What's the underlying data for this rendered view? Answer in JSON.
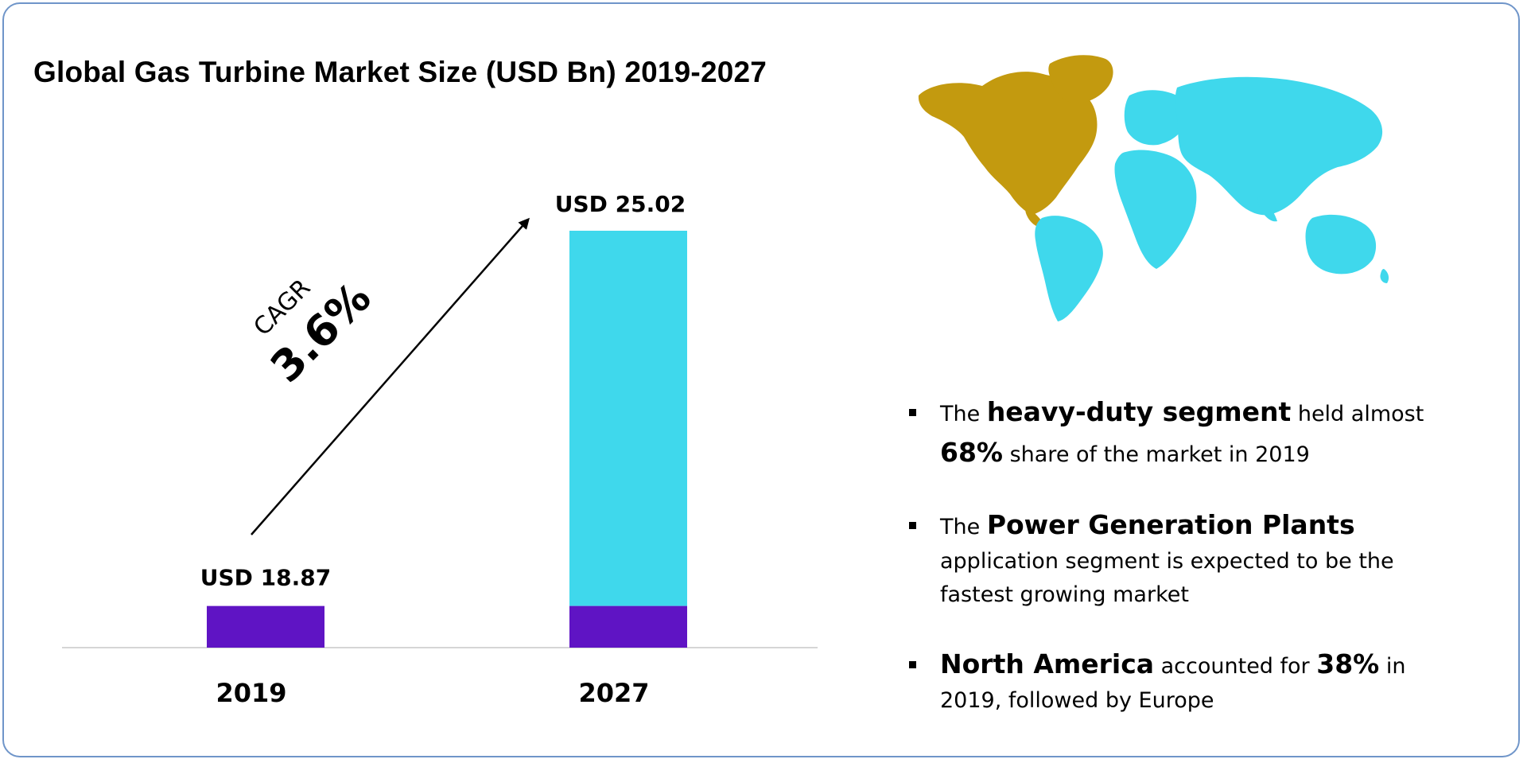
{
  "title": "Global Gas Turbine Market Size (USD Bn) 2019-2027",
  "cagr": {
    "label": "CAGR",
    "value": "3.6%"
  },
  "chart_data": {
    "type": "bar",
    "title": "Global Gas Turbine Market Size (USD Bn) 2019-2027",
    "categories": [
      "2019",
      "2027"
    ],
    "values": [
      18.87,
      25.02
    ],
    "data_labels": [
      "USD 18.87",
      "USD 25.02"
    ],
    "xlabel": "",
    "ylabel": "",
    "ylim": [
      0,
      25.02
    ],
    "base_value_shown": 2.5,
    "grid": false,
    "colors": {
      "base": "#5f14c4",
      "growth": "#3fd8ec"
    }
  },
  "map": {
    "highlight_color": "#c39a0f",
    "other_color": "#3fd8ec"
  },
  "bullets": [
    {
      "parts": [
        {
          "text": "The ",
          "bold": false
        },
        {
          "text": "heavy-duty segment",
          "bold": true
        },
        {
          "text": " held almost ",
          "bold": false
        },
        {
          "text": "68%",
          "bold": true
        },
        {
          "text": " share of the market in 2019",
          "bold": false
        }
      ]
    },
    {
      "parts": [
        {
          "text": "The ",
          "bold": false
        },
        {
          "text": "Power Generation Plants",
          "bold": true
        },
        {
          "text": " application segment is expected to be the fastest growing market",
          "bold": false
        }
      ]
    },
    {
      "parts": [
        {
          "text": "North America",
          "bold": true
        },
        {
          "text": " accounted for ",
          "bold": false
        },
        {
          "text": "38%",
          "bold": true
        },
        {
          "text": " in 2019, followed by Europe",
          "bold": false
        }
      ]
    }
  ]
}
